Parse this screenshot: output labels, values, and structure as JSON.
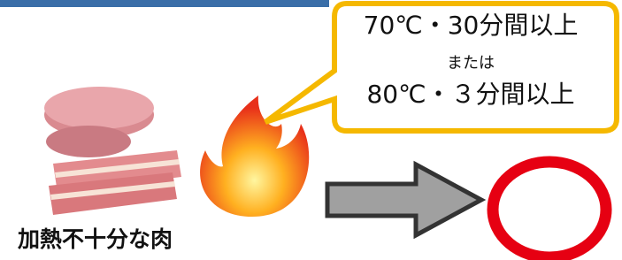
{
  "bubble": {
    "line1": "70℃・30分間以上",
    "line2": "または",
    "line3": "80℃・３分間以上"
  },
  "meat_label": "加熱不十分な肉"
}
